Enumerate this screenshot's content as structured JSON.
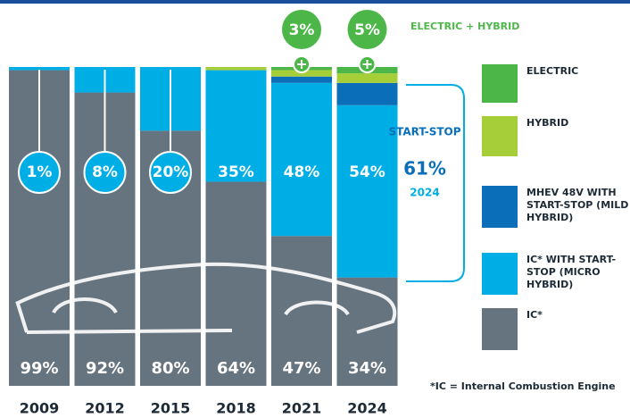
{
  "chart_data": {
    "type": "stacked-bar",
    "categories": [
      "2009",
      "2012",
      "2015",
      "2018",
      "2021",
      "2024"
    ],
    "ylim": [
      0,
      100
    ],
    "series": [
      {
        "name": "IC*",
        "color": "#66747f",
        "values": [
          99,
          92,
          80,
          64,
          47,
          34
        ],
        "value_labels": [
          "99%",
          "92%",
          "80%",
          "64%",
          "47%",
          "34%"
        ]
      },
      {
        "name": "IC* WITH START-STOP (MICRO HYBRID)",
        "color": "#00aee6",
        "values": [
          1,
          8,
          20,
          35,
          48,
          54
        ],
        "value_labels": [
          "1%",
          "8%",
          "20%",
          "35%",
          "48%",
          "54%"
        ]
      },
      {
        "name": "MHEV 48V WITH START-STOP (MILD HYBRID)",
        "color": "#0a6fb8",
        "values": [
          0,
          0,
          0,
          0,
          2,
          7
        ]
      },
      {
        "name": "HYBRID",
        "color": "#a6ce39",
        "values": [
          0,
          0,
          0,
          1,
          2,
          3
        ]
      },
      {
        "name": "ELECTRIC",
        "color": "#4cb748",
        "values": [
          0,
          0,
          0,
          0,
          1,
          2
        ]
      }
    ],
    "ev_hybrid_totals": {
      "label": "ELECTRIC + HYBRID",
      "values": [
        null,
        null,
        null,
        null,
        3,
        5
      ],
      "value_labels": [
        null,
        null,
        null,
        null,
        "3%",
        "5%"
      ]
    },
    "start_stop_total": {
      "label": "START-STOP",
      "value": 61,
      "value_label": "61%",
      "year": "2024"
    },
    "footnote": "*IC = Internal Combustion Engine"
  }
}
